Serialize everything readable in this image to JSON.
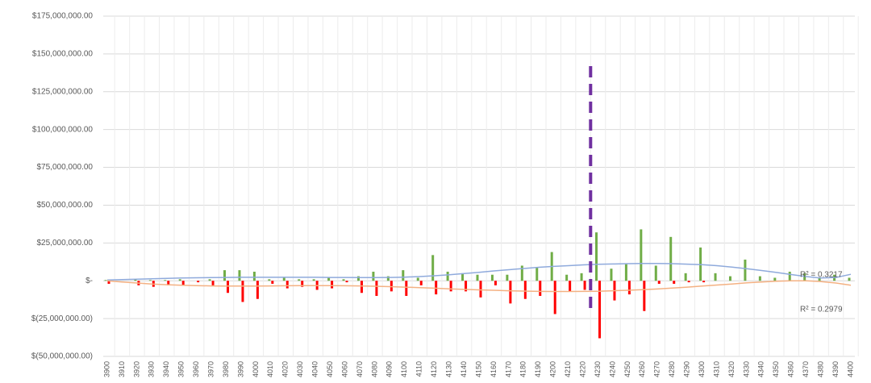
{
  "chart_data": {
    "type": "bar",
    "categories": [
      3900,
      3910,
      3920,
      3930,
      3940,
      3950,
      3960,
      3970,
      3980,
      3990,
      4000,
      4010,
      4020,
      4030,
      4040,
      4050,
      4060,
      4070,
      4080,
      4090,
      4100,
      4110,
      4120,
      4130,
      4140,
      4150,
      4160,
      4170,
      4180,
      4190,
      4200,
      4210,
      4220,
      4230,
      4240,
      4250,
      4260,
      4270,
      4280,
      4290,
      4300,
      4310,
      4320,
      4330,
      4340,
      4350,
      4360,
      4370,
      4380,
      4390,
      4400
    ],
    "series": [
      {
        "color": "#70ad47",
        "values": [
          500000,
          0,
          1000000,
          500000,
          500000,
          1000000,
          0,
          1000000,
          7000000,
          7000000,
          6000000,
          1000000,
          2000000,
          1000000,
          1000000,
          2000000,
          1000000,
          3000000,
          6000000,
          3000000,
          7000000,
          2000000,
          17000000,
          6000000,
          5000000,
          4000000,
          4000000,
          4000000,
          10000000,
          9000000,
          19000000,
          4000000,
          5000000,
          32000000,
          8000000,
          11000000,
          34000000,
          10000000,
          29000000,
          5000000,
          22000000,
          5000000,
          3000000,
          14000000,
          3000000,
          2000000,
          6000000,
          5000000,
          2000000,
          4000000,
          2000000
        ]
      },
      {
        "color": "#ff0000",
        "values": [
          -2000000,
          0,
          -3000000,
          -4000000,
          -3000000,
          -3000000,
          -1000000,
          -3000000,
          -8000000,
          -14000000,
          -12000000,
          -2000000,
          -5000000,
          -4000000,
          -6000000,
          -5000000,
          -1000000,
          -8000000,
          -10000000,
          -7000000,
          -10000000,
          -3000000,
          -9000000,
          -7000000,
          -7000000,
          -11000000,
          -3000000,
          -15000000,
          -12000000,
          -10000000,
          -22000000,
          -7000000,
          -6000000,
          -38000000,
          -13000000,
          -9000000,
          -20000000,
          -2000000,
          -2000000,
          -1000000,
          -1000000,
          0,
          0,
          0,
          0,
          0,
          0,
          0,
          0,
          0,
          0
        ]
      }
    ],
    "trendlines": [
      {
        "color": "#8faadc",
        "label": "R² = 0.3217",
        "values": [
          500000,
          800000,
          1000000,
          1300000,
          1600000,
          1800000,
          2000000,
          2100000,
          2200000,
          2300000,
          2300000,
          2300000,
          2300000,
          2300000,
          2300000,
          2200000,
          2200000,
          2100000,
          2100000,
          2200000,
          2400000,
          2800000,
          3300000,
          4000000,
          4800000,
          5600000,
          6500000,
          7300000,
          8100000,
          8900000,
          9500000,
          10000000,
          10500000,
          10900000,
          11100000,
          11300000,
          11400000,
          11400000,
          11300000,
          11000000,
          10600000,
          10000000,
          9100000,
          8000000,
          6800000,
          5500000,
          4100000,
          2800000,
          1800000,
          2200000,
          4300000
        ]
      },
      {
        "color": "#f4b183",
        "label": "R² = 0.2979",
        "values": [
          0,
          -800000,
          -1500000,
          -2100000,
          -2600000,
          -3000000,
          -3200000,
          -3400000,
          -3500000,
          -3500000,
          -3500000,
          -3400000,
          -3300000,
          -3200000,
          -3200000,
          -3200000,
          -3300000,
          -3400000,
          -3600000,
          -3900000,
          -4200000,
          -4500000,
          -4900000,
          -5300000,
          -5700000,
          -6000000,
          -6300000,
          -6600000,
          -6800000,
          -7000000,
          -7100000,
          -7100000,
          -7000000,
          -6900000,
          -6600000,
          -6300000,
          -5900000,
          -5400000,
          -4800000,
          -4200000,
          -3500000,
          -2800000,
          -2100000,
          -1400000,
          -800000,
          -300000,
          0,
          0,
          -500000,
          -1500000,
          -3000000
        ]
      }
    ],
    "vline": {
      "x": 4225,
      "y": [
        -18000000,
        143000000
      ],
      "color": "#7030a0"
    },
    "ylim": [
      -50000000,
      175000000
    ],
    "yticks": [
      {
        "value": -50000000,
        "label": "$(50,000,000.00)"
      },
      {
        "value": -25000000,
        "label": "$(25,000,000.00)"
      },
      {
        "value": 0,
        "label": "$-"
      },
      {
        "value": 25000000,
        "label": "$25,000,000.00"
      },
      {
        "value": 50000000,
        "label": "$50,000,000.00"
      },
      {
        "value": 75000000,
        "label": "$75,000,000.00"
      },
      {
        "value": 100000000,
        "label": "$100,000,000.00"
      },
      {
        "value": 125000000,
        "label": "$125,000,000.00"
      },
      {
        "value": 150000000,
        "label": "$150,000,000.00"
      },
      {
        "value": 175000000,
        "label": "$175,000,000.00"
      }
    ],
    "grid": true
  }
}
